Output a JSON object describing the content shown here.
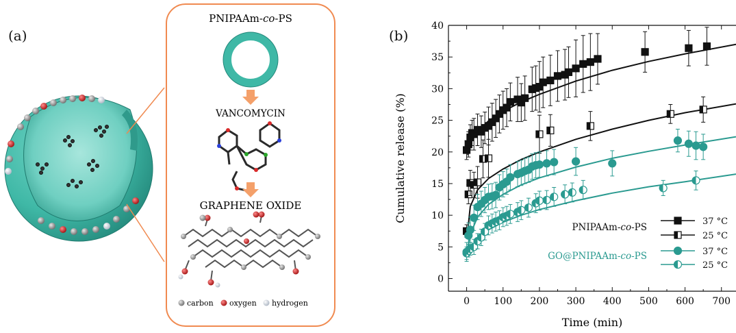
{
  "panel_a": {
    "label": "(a)",
    "steps": {
      "polymer": {
        "prefix": "PNIPAAm-",
        "italic": "co",
        "suffix": "-PS"
      },
      "drug": "VANCOMYCIN",
      "carrier": "GRAPHENE OXIDE"
    },
    "legend": {
      "carbon": "carbon",
      "oxygen": "oxygen",
      "hydrogen": "hydrogen"
    },
    "colors": {
      "shell": "#3fb8a6",
      "frame": "#f08a50",
      "carbon": "#9a9a9a",
      "oxygen": "#d92a2a",
      "hydrogen": "#d8e0ea"
    }
  },
  "panel_b": {
    "label": "(b)"
  },
  "chart_data": {
    "type": "scatter",
    "xlabel": "Time (min)",
    "ylabel": "Cumulative release (%)",
    "xlim": [
      -50,
      740
    ],
    "ylim": [
      -2,
      40
    ],
    "xticks": [
      0,
      100,
      200,
      300,
      400,
      500,
      600,
      700
    ],
    "yticks": [
      0,
      5,
      10,
      15,
      20,
      25,
      30,
      35,
      40
    ],
    "grid": false,
    "legend_position": "bottom-right",
    "legend_groups": [
      {
        "prefix": "PNIPAAm-",
        "italic": "co",
        "suffix": "-PS",
        "color": "#111111"
      },
      {
        "prefix": "GO@PNIPAAm-",
        "italic": "co",
        "suffix": "-PS",
        "color": "#2a9a90"
      }
    ],
    "series": [
      {
        "name": "37 °C",
        "group": 0,
        "marker": "square",
        "fill": "full",
        "color": "#111111",
        "x": [
          0,
          5,
          10,
          15,
          20,
          30,
          40,
          50,
          60,
          70,
          80,
          90,
          100,
          110,
          120,
          140,
          150,
          160,
          180,
          190,
          200,
          210,
          230,
          250,
          270,
          280,
          300,
          320,
          340,
          360,
          490,
          610,
          660
        ],
        "y": [
          20.3,
          21.2,
          22.3,
          23,
          22.8,
          23.5,
          23.2,
          23.8,
          24.1,
          24.7,
          25.3,
          26,
          26.6,
          27,
          27.9,
          28.3,
          27.8,
          28.5,
          29.9,
          30.1,
          30.3,
          31,
          31.3,
          32,
          32.2,
          32.6,
          33.2,
          33.9,
          34.2,
          34.7,
          35.8,
          36.4,
          36.7
        ],
        "err": [
          1.5,
          2,
          2,
          2,
          2.5,
          2.5,
          2.5,
          2.5,
          3,
          3,
          3,
          3,
          3,
          3,
          3,
          3.5,
          3,
          3.5,
          3.5,
          3.5,
          4,
          4,
          4,
          4,
          4,
          4,
          4.5,
          4.5,
          4.5,
          4,
          3.2,
          2.8,
          3
        ],
        "fit": [
          [
            3,
            19.5
          ],
          [
            10,
            21.3
          ],
          [
            30,
            23.3
          ],
          [
            60,
            24.9
          ],
          [
            100,
            26.4
          ],
          [
            150,
            27.9
          ],
          [
            200,
            29.1
          ],
          [
            300,
            31.2
          ],
          [
            400,
            32.9
          ],
          [
            500,
            34.3
          ],
          [
            600,
            35.5
          ],
          [
            740,
            37.0
          ]
        ]
      },
      {
        "name": "25 °C",
        "group": 0,
        "marker": "square",
        "fill": "half",
        "color": "#111111",
        "x": [
          0,
          5,
          10,
          20,
          30,
          45,
          60,
          200,
          230,
          340,
          560,
          650
        ],
        "y": [
          7.5,
          13.3,
          15.1,
          14.8,
          15.2,
          18.9,
          19,
          22.8,
          23.4,
          24.1,
          26,
          26.7
        ],
        "err": [
          1,
          1.5,
          2,
          2,
          2.5,
          3,
          3,
          3,
          2.5,
          2.3,
          1.5,
          2
        ],
        "fit": [
          [
            2,
            7
          ],
          [
            10,
            11.4
          ],
          [
            30,
            14.0
          ],
          [
            60,
            15.8
          ],
          [
            100,
            17.3
          ],
          [
            150,
            18.8
          ],
          [
            200,
            20.0
          ],
          [
            300,
            22.0
          ],
          [
            400,
            23.6
          ],
          [
            500,
            25.0
          ],
          [
            600,
            26.2
          ],
          [
            740,
            27.6
          ]
        ]
      },
      {
        "name": "37 °C",
        "group": 1,
        "marker": "circle",
        "fill": "full",
        "color": "#2a9a90",
        "x": [
          0,
          5,
          10,
          20,
          30,
          40,
          50,
          60,
          70,
          80,
          90,
          100,
          110,
          120,
          140,
          150,
          160,
          170,
          180,
          190,
          200,
          220,
          240,
          300,
          400,
          580,
          610,
          630,
          650
        ],
        "y": [
          4.2,
          6.8,
          7.7,
          9.6,
          11.3,
          11.8,
          12.4,
          12.9,
          13,
          13.2,
          14.4,
          14.9,
          15.3,
          16,
          16.5,
          16.7,
          17,
          17.2,
          17.7,
          17.9,
          18,
          18.2,
          18.4,
          18.5,
          18.2,
          21.8,
          21.3,
          21,
          20.8
        ],
        "err": [
          1.5,
          2,
          2,
          2,
          2,
          2,
          2,
          2,
          2,
          2,
          2,
          2,
          2,
          2,
          2,
          2,
          2,
          2,
          2,
          2,
          2,
          2,
          2,
          2.2,
          2,
          1.8,
          2,
          2.2,
          2
        ],
        "fit": [
          [
            2,
            4.5
          ],
          [
            10,
            7.0
          ],
          [
            30,
            9.7
          ],
          [
            60,
            11.7
          ],
          [
            100,
            13.3
          ],
          [
            150,
            14.8
          ],
          [
            200,
            15.9
          ],
          [
            300,
            17.6
          ],
          [
            400,
            19.0
          ],
          [
            500,
            20.1
          ],
          [
            600,
            21.1
          ],
          [
            740,
            22.4
          ]
        ]
      },
      {
        "name": "25 °C",
        "group": 1,
        "marker": "circle",
        "fill": "half",
        "color": "#2a9a90",
        "x": [
          0,
          5,
          10,
          20,
          30,
          40,
          50,
          60,
          70,
          80,
          90,
          100,
          110,
          120,
          140,
          150,
          170,
          190,
          200,
          220,
          240,
          270,
          290,
          320,
          540,
          630
        ],
        "y": [
          4,
          4.4,
          4.7,
          5,
          5.9,
          6.5,
          7.4,
          8.4,
          8.7,
          9,
          9.2,
          9.7,
          9.9,
          10.2,
          10.5,
          10.8,
          11.2,
          11.9,
          12.3,
          12.4,
          12.9,
          13.3,
          13.6,
          14,
          14.3,
          15.5
        ],
        "err": [
          1,
          1,
          1,
          1.2,
          1.2,
          1.3,
          1.3,
          1.5,
          1.5,
          1.5,
          1.5,
          1.5,
          1.5,
          1.5,
          1.5,
          1.5,
          1.5,
          1.5,
          1.5,
          1.5,
          1.5,
          1.5,
          1.5,
          1.5,
          1.2,
          1.5
        ],
        "fit": [
          [
            2,
            3.5
          ],
          [
            10,
            4.6
          ],
          [
            30,
            6.3
          ],
          [
            60,
            7.7
          ],
          [
            100,
            8.9
          ],
          [
            150,
            10.0
          ],
          [
            200,
            10.9
          ],
          [
            300,
            12.3
          ],
          [
            400,
            13.5
          ],
          [
            500,
            14.5
          ],
          [
            600,
            15.3
          ],
          [
            740,
            16.5
          ]
        ]
      }
    ]
  }
}
